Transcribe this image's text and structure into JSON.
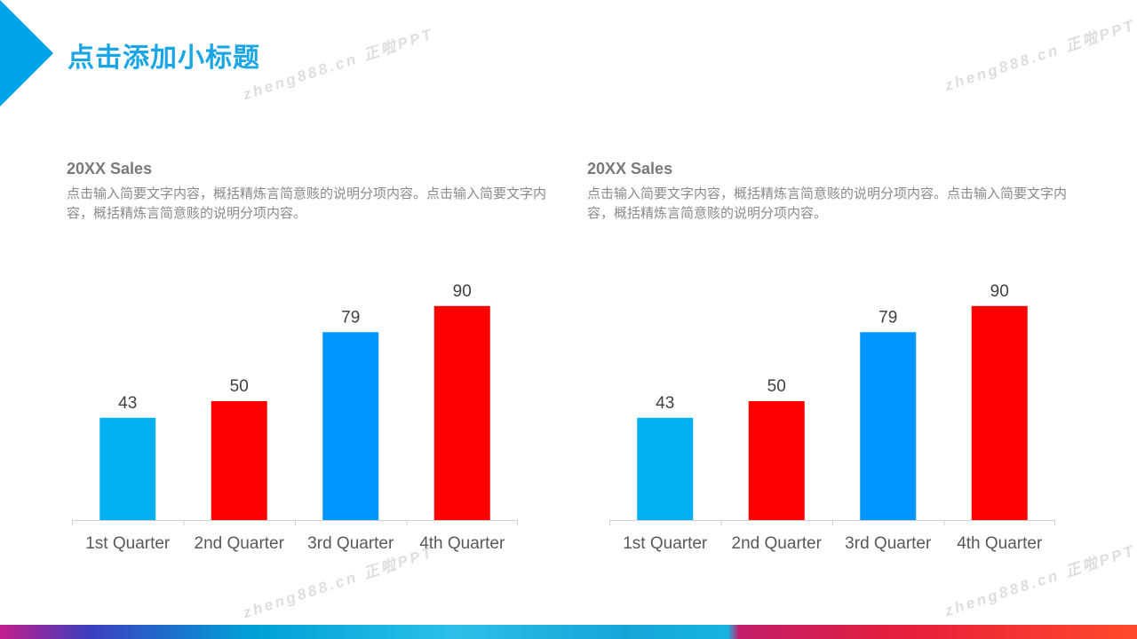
{
  "title": "点击添加小标题",
  "watermark": "zheng888.cn 正啦PPT",
  "colors": {
    "accent": "#00a3e8",
    "title": "#1aa6e5"
  },
  "panels": [
    {
      "heading": "20XX Sales",
      "description": "点击输入简要文字内容，概括精炼言简意赅的说明分项内容。点击输入简要文字内容，概括精炼言简意赅的说明分项内容。"
    },
    {
      "heading": "20XX Sales",
      "description": "点击输入简要文字内容，概括精炼言简意赅的说明分项内容。点击输入简要文字内容，概括精炼言简意赅的说明分项内容。"
    }
  ],
  "chart_data": [
    {
      "type": "bar",
      "categories": [
        "1st Quarter",
        "2nd Quarter",
        "3rd Quarter",
        "4th Quarter"
      ],
      "values": [
        43,
        50,
        79,
        90
      ],
      "colors": [
        "#00b0f0",
        "#ff0000",
        "#0096ff",
        "#ff0000"
      ],
      "title": "",
      "xlabel": "",
      "ylabel": "",
      "ylim": [
        0,
        100
      ],
      "grid": false,
      "legend": "none",
      "data_labels": true
    },
    {
      "type": "bar",
      "categories": [
        "1st Quarter",
        "2nd Quarter",
        "3rd Quarter",
        "4th Quarter"
      ],
      "values": [
        43,
        50,
        79,
        90
      ],
      "colors": [
        "#00b0f0",
        "#ff0000",
        "#0096ff",
        "#ff0000"
      ],
      "title": "",
      "xlabel": "",
      "ylabel": "",
      "ylim": [
        0,
        100
      ],
      "grid": false,
      "legend": "none",
      "data_labels": true
    }
  ]
}
